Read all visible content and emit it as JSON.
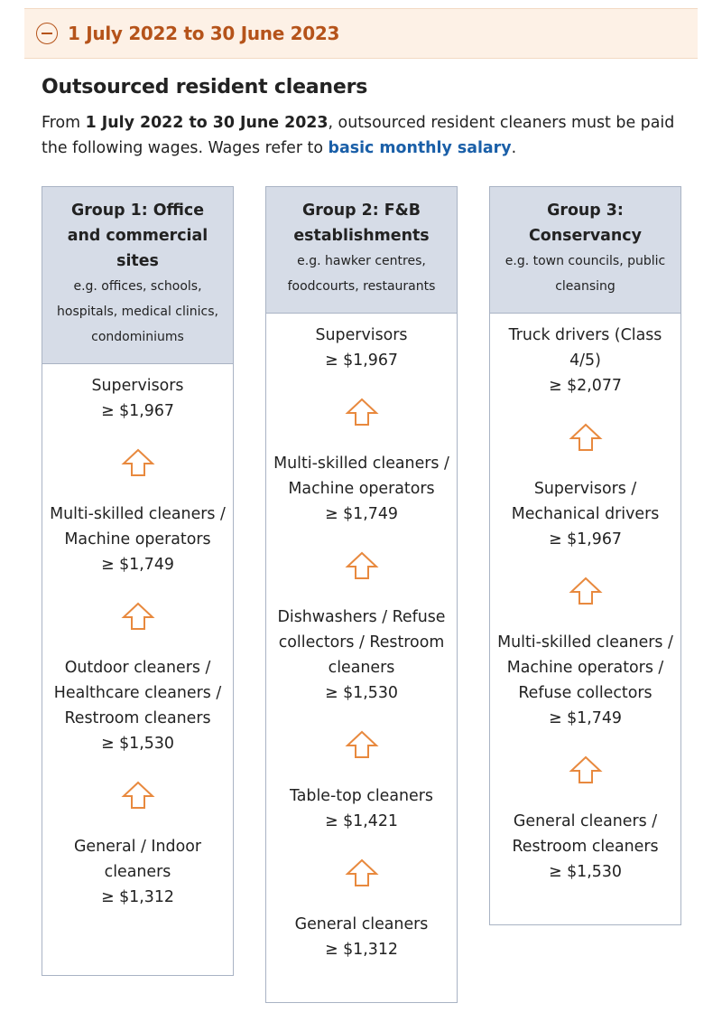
{
  "accordion": {
    "title": "1 July 2022 to 30 June 2023",
    "icon": "minus-circle-icon",
    "color": "#b5531a"
  },
  "section": {
    "heading": "Outsourced resident cleaners",
    "intro_pre": "From ",
    "intro_bold": "1 July 2022 to 30 June 2023",
    "intro_mid": ", outsourced resident cleaners must be paid the following wages. Wages refer to ",
    "intro_link": "basic monthly salary",
    "intro_end": "."
  },
  "groups": [
    {
      "title": "Group 1: Office and commercial sites",
      "examples": "e.g. offices, schools, hospitals, medical clinics, condominiums",
      "tiers": [
        {
          "role": "Supervisors",
          "wage": "≥ $1,967"
        },
        {
          "role": "Multi-skilled cleaners / Machine operators",
          "wage": "≥ $1,749"
        },
        {
          "role": "Outdoor cleaners / Healthcare cleaners / Restroom cleaners",
          "wage": "≥ $1,530"
        },
        {
          "role": "General / Indoor cleaners",
          "wage": "≥ $1,312"
        }
      ]
    },
    {
      "title": "Group 2: F&B establishments",
      "examples": "e.g. hawker centres, foodcourts, restaurants",
      "tiers": [
        {
          "role": "Supervisors",
          "wage": "≥ $1,967"
        },
        {
          "role": "Multi-skilled cleaners / Machine operators",
          "wage": "≥ $1,749"
        },
        {
          "role": "Dishwashers / Refuse collectors / Restroom cleaners",
          "wage": "≥ $1,530"
        },
        {
          "role": "Table-top cleaners",
          "wage": "≥ $1,421"
        },
        {
          "role": "General cleaners",
          "wage": "≥ $1,312"
        }
      ]
    },
    {
      "title": "Group 3: Conservancy",
      "examples": "e.g. town councils, public cleansing",
      "tiers": [
        {
          "role": "Truck drivers (Class 4/5)",
          "wage": "≥ $2,077"
        },
        {
          "role": "Supervisors / Mechanical drivers",
          "wage": "≥ $1,967"
        },
        {
          "role": "Multi-skilled cleaners / Machine operators / Refuse collectors",
          "wage": "≥ $1,749"
        },
        {
          "role": "General cleaners / Restroom cleaners",
          "wage": "≥ $1,530"
        }
      ]
    }
  ],
  "colors": {
    "arrow": "#e8893e",
    "header_bg": "#d6dce7",
    "link": "#1a5fa8"
  }
}
